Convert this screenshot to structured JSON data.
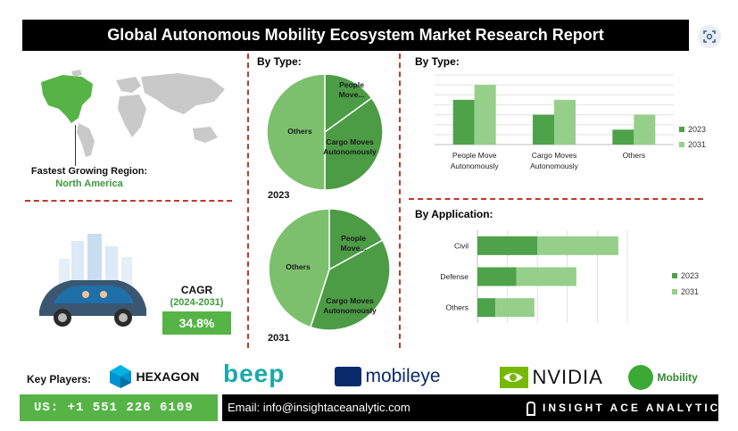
{
  "header": {
    "title": "Global Autonomous Mobility Ecosystem Market Research Report"
  },
  "region": {
    "label": "Fastest Growing Region:",
    "value": "North America"
  },
  "cagr": {
    "label": "CAGR",
    "period": "(2024-2031)",
    "value": "34.8%"
  },
  "pie_section": {
    "title": "By Type:"
  },
  "bar_type_section": {
    "title": "By Type:"
  },
  "application_section": {
    "title": "By Application:"
  },
  "footer": {
    "key_players_label": "Key Players:",
    "players": [
      "HEXAGON",
      "beep",
      "mobileye",
      "NVIDIA",
      "Mobility"
    ],
    "phone": "US: +1 551 226 6109",
    "email": "Email: info@insightaceanalytic.com",
    "brand": "INSIGHT ACE ANALYTIC"
  },
  "colors": {
    "dark_green": "#4ea24a",
    "light_green": "#96cf8a",
    "pie_light": "#7cc06d",
    "pie_dark": "#4b9c45",
    "accent_red": "#c0392b"
  },
  "chart_data": [
    {
      "type": "pie",
      "title": "2023",
      "categories": [
        "People Move...",
        "Cargo Moves Autonomously",
        "Others"
      ],
      "values": [
        15,
        35,
        50
      ]
    },
    {
      "type": "pie",
      "title": "2031",
      "categories": [
        "People Move...",
        "Cargo Moves Autonomously",
        "Others"
      ],
      "values": [
        17,
        38,
        45
      ]
    },
    {
      "type": "bar",
      "title": "By Type:",
      "categories": [
        "People Move Autonomously",
        "Cargo Moves Autonomously",
        "Others"
      ],
      "series": [
        {
          "name": "2023",
          "values": [
            45,
            30,
            15
          ]
        },
        {
          "name": "2031",
          "values": [
            60,
            45,
            30
          ]
        }
      ],
      "ylim": [
        0,
        70
      ],
      "grid": true,
      "legend": "right"
    },
    {
      "type": "bar",
      "orientation": "horizontal",
      "stacked": true,
      "title": "By Application:",
      "categories": [
        "Civil",
        "Defense",
        "Others"
      ],
      "series": [
        {
          "name": "2023",
          "values": [
            20,
            13,
            6
          ]
        },
        {
          "name": "2031",
          "values": [
            27,
            20,
            13
          ]
        }
      ],
      "grid": true,
      "legend": "right"
    }
  ]
}
